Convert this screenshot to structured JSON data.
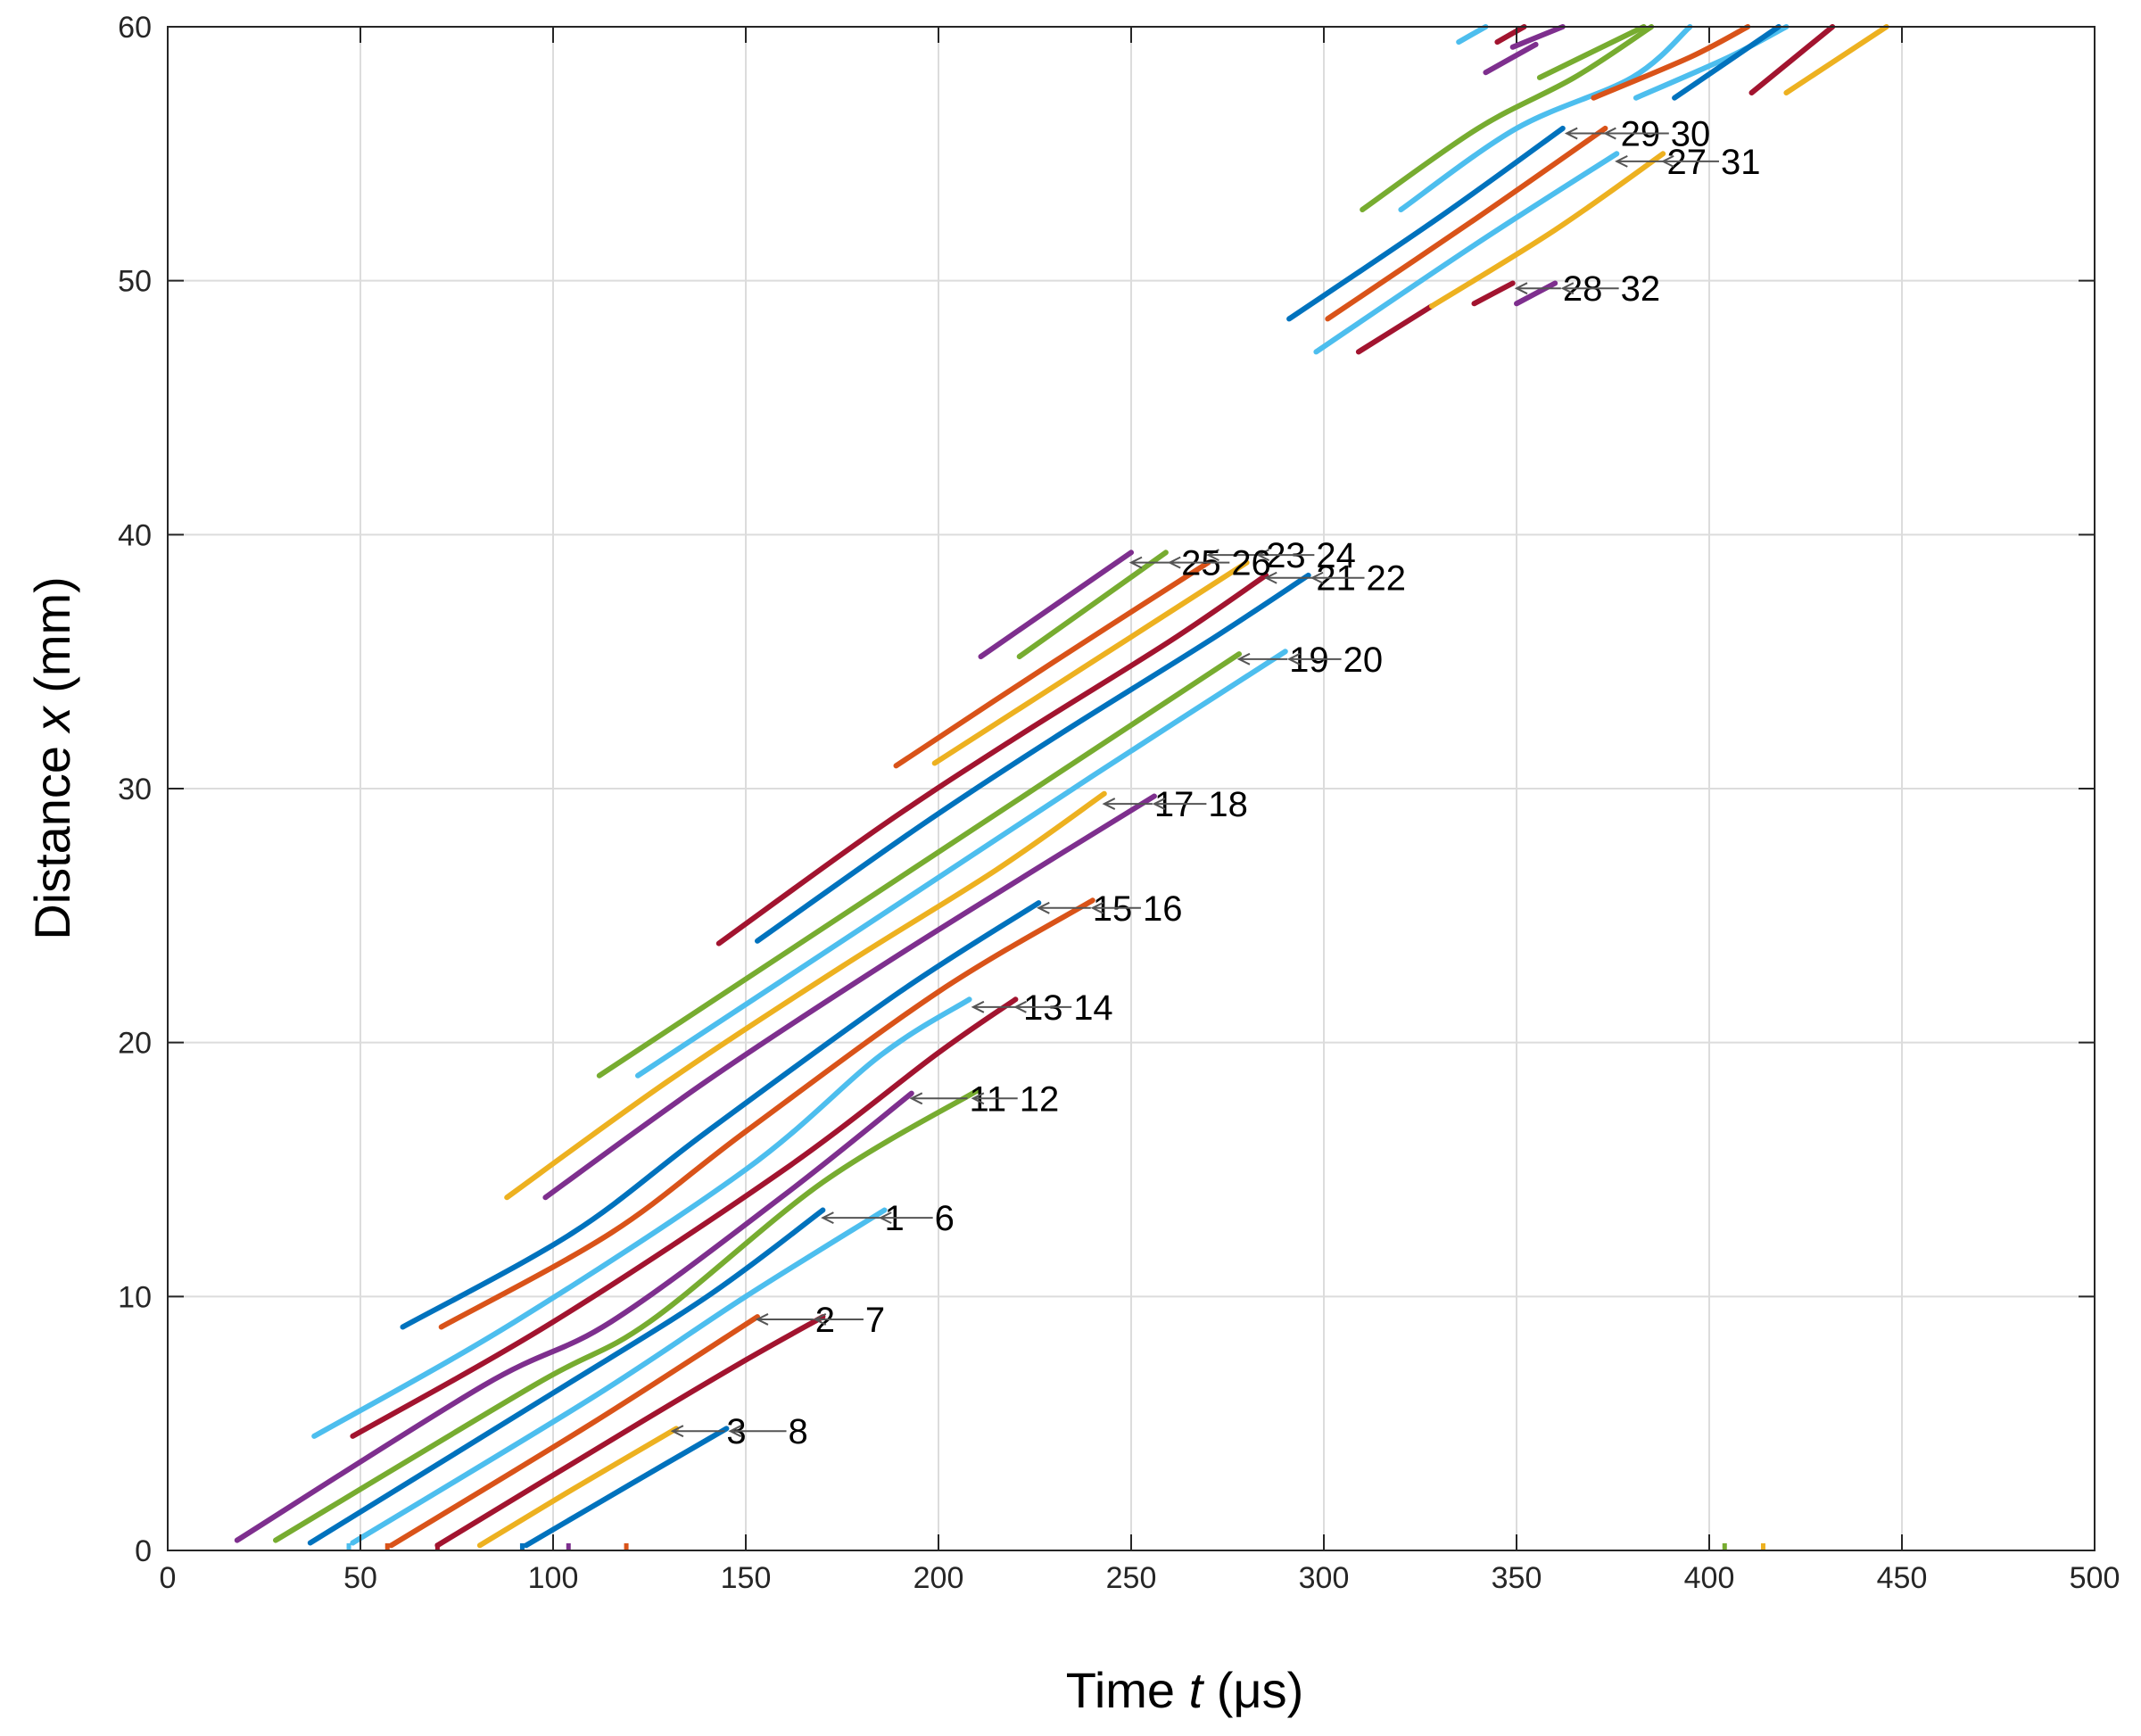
{
  "chart_data": {
    "type": "line",
    "title": "",
    "xlabel": "Time t (μs)",
    "xlabel_parts": {
      "prefix": "Time ",
      "var": "t",
      "suffix": " (μs)"
    },
    "ylabel": "Distance x (mm)",
    "ylabel_parts": {
      "prefix": "Distance ",
      "var": "x",
      "suffix": " (mm)"
    },
    "xlim": [
      0,
      500
    ],
    "ylim": [
      0,
      60
    ],
    "xticks": [
      0,
      50,
      100,
      150,
      200,
      250,
      300,
      350,
      400,
      450,
      500
    ],
    "yticks": [
      0,
      10,
      20,
      30,
      40,
      50,
      60
    ],
    "grid": true,
    "colors": [
      "#0072BD",
      "#D95319",
      "#EDB120",
      "#7E2F8E",
      "#77AC30",
      "#4DBEEE",
      "#A2142F"
    ],
    "series": [
      {
        "color": "#7E2F8E",
        "x": [
          18,
          82,
          115,
          160,
          193
        ],
        "y": [
          0.4,
          6.5,
          9.0,
          14.0,
          18.0
        ]
      },
      {
        "color": "#77AC30",
        "x": [
          28,
          95,
          125,
          170,
          210
        ],
        "y": [
          0.4,
          6.5,
          9.0,
          14.5,
          18.1
        ]
      },
      {
        "color": "#0072BD",
        "x": [
          37,
          100,
          140,
          170
        ],
        "y": [
          0.3,
          6.2,
          10.0,
          13.4
        ]
      },
      {
        "color": "#4DBEEE",
        "x": [
          48,
          110,
          150,
          186
        ],
        "y": [
          0.3,
          6.0,
          10.0,
          13.4
        ]
      },
      {
        "color": "#D95319",
        "x": [
          58,
          110,
          153
        ],
        "y": [
          0.2,
          5.0,
          9.2
        ]
      },
      {
        "color": "#A2142F",
        "x": [
          70,
          120,
          150,
          170
        ],
        "y": [
          0.2,
          4.8,
          7.5,
          9.2
        ]
      },
      {
        "color": "#EDB120",
        "x": [
          81,
          105,
          132
        ],
        "y": [
          0.2,
          2.4,
          4.8
        ]
      },
      {
        "color": "#0072BD",
        "x": [
          93,
          120,
          145
        ],
        "y": [
          0.2,
          2.6,
          4.8
        ]
      },
      {
        "color": "#4DBEEE",
        "x": [
          38,
          90,
          150,
          185,
          208
        ],
        "y": [
          4.5,
          9.0,
          15.0,
          19.5,
          21.7
        ]
      },
      {
        "color": "#A2142F",
        "x": [
          48,
          100,
          160,
          200,
          220
        ],
        "y": [
          4.5,
          9.0,
          15.0,
          19.6,
          21.7
        ]
      },
      {
        "color": "#0072BD",
        "x": [
          61,
          105,
          140,
          190,
          226
        ],
        "y": [
          8.8,
          12.5,
          16.5,
          22.0,
          25.5
        ]
      },
      {
        "color": "#D95319",
        "x": [
          71,
          115,
          150,
          200,
          240
        ],
        "y": [
          8.8,
          12.5,
          16.5,
          22.0,
          25.6
        ]
      },
      {
        "color": "#EDB120",
        "x": [
          88,
          130,
          175,
          215,
          243
        ],
        "y": [
          13.9,
          18.5,
          23.0,
          26.8,
          29.8
        ]
      },
      {
        "color": "#7E2F8E",
        "x": [
          98,
          140,
          185,
          225,
          256
        ],
        "y": [
          13.9,
          18.5,
          23.0,
          26.8,
          29.7
        ]
      },
      {
        "color": "#77AC30",
        "x": [
          112,
          150,
          190,
          230,
          278
        ],
        "y": [
          18.7,
          22.5,
          26.5,
          30.5,
          35.3
        ]
      },
      {
        "color": "#4DBEEE",
        "x": [
          122,
          160,
          200,
          240,
          290
        ],
        "y": [
          18.7,
          22.5,
          26.5,
          30.5,
          35.4
        ]
      },
      {
        "color": "#A2142F",
        "x": [
          143,
          185,
          220,
          260,
          285
        ],
        "y": [
          23.9,
          28.5,
          32.0,
          35.8,
          38.4
        ]
      },
      {
        "color": "#0072BD",
        "x": [
          153,
          195,
          230,
          270,
          296
        ],
        "y": [
          24.0,
          28.5,
          32.0,
          35.8,
          38.4
        ]
      },
      {
        "color": "#D95319",
        "x": [
          189,
          230,
          270
        ],
        "y": [
          30.9,
          35.0,
          38.9
        ]
      },
      {
        "color": "#EDB120",
        "x": [
          199,
          240,
          280
        ],
        "y": [
          31.0,
          35.0,
          38.9
        ]
      },
      {
        "color": "#7E2F8E",
        "x": [
          211,
          250
        ],
        "y": [
          35.2,
          39.3
        ]
      },
      {
        "color": "#77AC30",
        "x": [
          221,
          259
        ],
        "y": [
          35.2,
          39.3
        ]
      },
      {
        "color": "#0072BD",
        "x": [
          291,
          330,
          362
        ],
        "y": [
          48.5,
          52.5,
          56.0
        ]
      },
      {
        "color": "#D95319",
        "x": [
          301,
          340,
          373
        ],
        "y": [
          48.5,
          52.5,
          56.0
        ]
      },
      {
        "color": "#4DBEEE",
        "x": [
          298,
          340,
          376
        ],
        "y": [
          47.2,
          51.5,
          55.0
        ]
      },
      {
        "color": "#A2142F",
        "x": [
          309,
          328
        ],
        "y": [
          47.2,
          49.0
        ]
      },
      {
        "color": "#EDB120",
        "x": [
          328,
          360,
          388
        ],
        "y": [
          49.0,
          52.0,
          55.0
        ]
      },
      {
        "color": "#A2142F",
        "x": [
          339,
          349
        ],
        "y": [
          49.1,
          49.9
        ]
      },
      {
        "color": "#7E2F8E",
        "x": [
          350,
          360
        ],
        "y": [
          49.1,
          49.9
        ]
      },
      {
        "color": "#77AC30",
        "x": [
          310,
          340,
          365,
          385
        ],
        "y": [
          52.8,
          56.0,
          58.0,
          60.0
        ]
      },
      {
        "color": "#4DBEEE",
        "x": [
          320,
          350,
          380,
          395
        ],
        "y": [
          52.8,
          56.0,
          58.0,
          60.0
        ]
      },
      {
        "color": "#D95319",
        "x": [
          370,
          395,
          410
        ],
        "y": [
          57.2,
          58.8,
          60.0
        ]
      },
      {
        "color": "#4DBEEE",
        "x": [
          381,
          405,
          420
        ],
        "y": [
          57.2,
          58.8,
          60.0
        ]
      },
      {
        "color": "#0072BD",
        "x": [
          391,
          418
        ],
        "y": [
          57.2,
          60.0
        ]
      },
      {
        "color": "#A2142F",
        "x": [
          411,
          432
        ],
        "y": [
          57.4,
          60.0
        ]
      },
      {
        "color": "#EDB120",
        "x": [
          420,
          446
        ],
        "y": [
          57.4,
          60.0
        ]
      },
      {
        "color": "#77AC30",
        "x": [
          356,
          383
        ],
        "y": [
          58.0,
          60.0
        ]
      },
      {
        "color": "#7E2F8E",
        "x": [
          342,
          355
        ],
        "y": [
          58.2,
          59.3
        ]
      },
      {
        "color": "#7E2F8E",
        "x": [
          349,
          362
        ],
        "y": [
          59.2,
          60.0
        ]
      },
      {
        "color": "#4DBEEE",
        "x": [
          335,
          342
        ],
        "y": [
          59.4,
          60.0
        ]
      },
      {
        "color": "#A2142F",
        "x": [
          345,
          352
        ],
        "y": [
          59.4,
          60.0
        ]
      }
    ],
    "markers": [
      {
        "x": 47,
        "color": "#4DBEEE"
      },
      {
        "x": 57,
        "color": "#D95319"
      },
      {
        "x": 70,
        "color": "#A2142F"
      },
      {
        "x": 92,
        "color": "#0072BD"
      },
      {
        "x": 104,
        "color": "#7E2F8E"
      },
      {
        "x": 119,
        "color": "#D95319"
      },
      {
        "x": 404,
        "color": "#77AC30"
      },
      {
        "x": 414,
        "color": "#EDB120"
      }
    ],
    "annotations": [
      {
        "text": "1",
        "x": 186,
        "y": 13.1,
        "ax": 170
      },
      {
        "text": "6",
        "x": 199,
        "y": 13.1,
        "ax": 185
      },
      {
        "text": "2",
        "x": 168,
        "y": 9.1,
        "ax": 153
      },
      {
        "text": "7",
        "x": 181,
        "y": 9.1,
        "ax": 168
      },
      {
        "text": "3",
        "x": 145,
        "y": 4.7,
        "ax": 131
      },
      {
        "text": "8",
        "x": 161,
        "y": 4.7,
        "ax": 146
      },
      {
        "text": "11",
        "x": 208,
        "y": 17.8,
        "ax": 193
      },
      {
        "text": "12",
        "x": 221,
        "y": 17.8,
        "ax": 209
      },
      {
        "text": "13",
        "x": 222,
        "y": 21.4,
        "ax": 209
      },
      {
        "text": "14",
        "x": 235,
        "y": 21.4,
        "ax": 220
      },
      {
        "text": "15",
        "x": 240,
        "y": 25.3,
        "ax": 226
      },
      {
        "text": "16",
        "x": 253,
        "y": 25.3,
        "ax": 240
      },
      {
        "text": "17",
        "x": 256,
        "y": 29.4,
        "ax": 243
      },
      {
        "text": "18",
        "x": 270,
        "y": 29.4,
        "ax": 256
      },
      {
        "text": "19",
        "x": 291,
        "y": 35.1,
        "ax": 278
      },
      {
        "text": "20",
        "x": 305,
        "y": 35.1,
        "ax": 291
      },
      {
        "text": "21",
        "x": 298,
        "y": 38.3,
        "ax": 285
      },
      {
        "text": "22",
        "x": 311,
        "y": 38.3,
        "ax": 297
      },
      {
        "text": "23",
        "x": 285,
        "y": 39.2,
        "ax": 270
      },
      {
        "text": "24",
        "x": 298,
        "y": 39.2,
        "ax": 283
      },
      {
        "text": "25",
        "x": 263,
        "y": 38.9,
        "ax": 250
      },
      {
        "text": "26",
        "x": 276,
        "y": 38.9,
        "ax": 260
      },
      {
        "text": "27",
        "x": 389,
        "y": 54.7,
        "ax": 376
      },
      {
        "text": "31",
        "x": 403,
        "y": 54.7,
        "ax": 388
      },
      {
        "text": "28",
        "x": 362,
        "y": 49.7,
        "ax": 350
      },
      {
        "text": "32",
        "x": 377,
        "y": 49.7,
        "ax": 362
      },
      {
        "text": "29",
        "x": 377,
        "y": 55.8,
        "ax": 363
      },
      {
        "text": "30",
        "x": 390,
        "y": 55.8,
        "ax": 373
      }
    ]
  }
}
